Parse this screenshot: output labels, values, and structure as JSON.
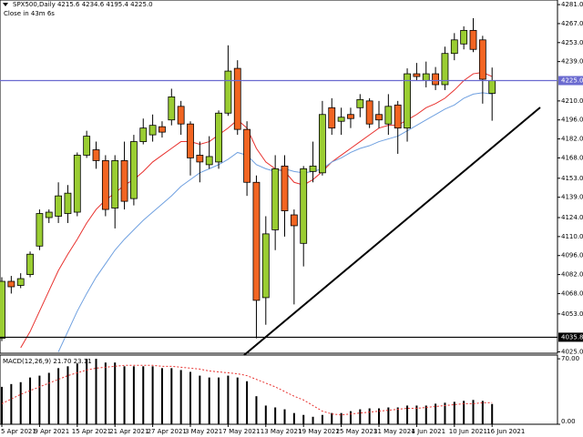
{
  "chart_data": [
    {
      "type": "candlestick",
      "header": "SPX500,Daily  4215.6 4234.6 4195.4 4225.0",
      "subheader": "Close in 43m 6s",
      "categories": [
        "5 Apr 2021",
        null,
        null,
        null,
        "9 Apr 2021",
        null,
        null,
        null,
        "15 Apr 2021",
        null,
        null,
        null,
        "21 Apr 2021",
        null,
        null,
        null,
        "27 Apr 2021",
        null,
        null,
        null,
        "3 May 2021",
        null,
        null,
        null,
        "7 May 2021",
        null,
        null,
        null,
        "13 May 2021",
        null,
        null,
        null,
        "19 May 2021",
        null,
        null,
        null,
        "25 May 2021",
        null,
        null,
        null,
        "31 May 2021",
        null,
        null,
        null,
        "4 Jun 2021",
        null,
        null,
        null,
        "10 Jun 2021",
        null,
        null,
        null,
        "16 Jun 2021"
      ],
      "open": [
        4035,
        4077,
        4074,
        4082,
        4103,
        4124,
        4125,
        4127,
        4128,
        4170,
        4174,
        4166,
        4131,
        4166,
        4138,
        4180,
        4185,
        4191,
        4196,
        4206,
        4193,
        4170,
        4163,
        4165,
        4201,
        4234,
        4189,
        4150,
        4065,
        4115,
        4162,
        4126,
        4105,
        4158,
        4157,
        4205,
        4195,
        4200,
        4205,
        4210,
        4200,
        4193,
        4207,
        4190,
        4230,
        4225,
        4230,
        4222,
        4245,
        4252,
        4262,
        4255,
        4215.6
      ],
      "high": [
        4080,
        4081,
        4083,
        4099,
        4130,
        4130,
        4150,
        4148,
        4172,
        4188,
        4180,
        4170,
        4170,
        4180,
        4185,
        4197,
        4200,
        4195,
        4219,
        4210,
        4195,
        4180,
        4184,
        4203,
        4251,
        4240,
        4195,
        4155,
        4125,
        4170,
        4170,
        4130,
        4162,
        4180,
        4210,
        4212,
        4205,
        4205,
        4215,
        4212,
        4210,
        4215,
        4210,
        4234,
        4238,
        4239,
        4235,
        4250,
        4260,
        4265,
        4271,
        4258,
        4234.6
      ],
      "low": [
        4033,
        4068,
        4072,
        4080,
        4100,
        4120,
        4120,
        4120,
        4125,
        4168,
        4160,
        4125,
        4116,
        4130,
        4133,
        4178,
        4180,
        4183,
        4192,
        4185,
        4155,
        4150,
        4160,
        4160,
        4199,
        4185,
        4140,
        4035,
        4045,
        4100,
        4110,
        4060,
        4088,
        4150,
        4155,
        4185,
        4185,
        4190,
        4198,
        4190,
        4190,
        4185,
        4171,
        4180,
        4225,
        4220,
        4218,
        4218,
        4240,
        4248,
        4246,
        4208,
        4195.4
      ],
      "close": [
        4077,
        4073,
        4079,
        4097,
        4127,
        4128,
        4140,
        4142,
        4170,
        4184,
        4166,
        4130,
        4166,
        4136,
        4180,
        4190,
        4192,
        4187,
        4213,
        4193,
        4168,
        4165,
        4169,
        4201,
        4232,
        4189,
        4150,
        4063,
        4112,
        4160,
        4129,
        4118,
        4160,
        4162,
        4200,
        4190,
        4198,
        4197,
        4211,
        4193,
        4196,
        4206,
        4190,
        4230,
        4228,
        4230,
        4222,
        4245,
        4255,
        4262,
        4248,
        4226,
        4225.0
      ],
      "up_color": "#9acd32",
      "down_color": "#f26522",
      "series": [
        {
          "color": "#e8322f",
          "values": [
            null,
            null,
            4028,
            4040,
            4055,
            4070,
            4085,
            4097,
            4108,
            4120,
            4130,
            4137,
            4142,
            4148,
            4152,
            4158,
            4165,
            4170,
            4175,
            4180,
            4180,
            4178,
            4180,
            4185,
            4190,
            4196,
            4190,
            4175,
            4165,
            4160,
            4158,
            4150,
            4148,
            4152,
            4158,
            4165,
            4170,
            4175,
            4180,
            4185,
            4190,
            4192,
            4192,
            4196,
            4200,
            4205,
            4208,
            4212,
            4218,
            4225,
            4230,
            4231,
            4228
          ]
        },
        {
          "color": "#6fa0e0",
          "values": [
            null,
            null,
            null,
            null,
            null,
            null,
            4025,
            4040,
            4055,
            4068,
            4080,
            4090,
            4100,
            4108,
            4115,
            4122,
            4128,
            4134,
            4140,
            4147,
            4152,
            4157,
            4160,
            4163,
            4167,
            4172,
            4170,
            4163,
            4160,
            4158,
            4160,
            4158,
            4157,
            4158,
            4160,
            4165,
            4168,
            4172,
            4175,
            4177,
            4180,
            4182,
            4184,
            4188,
            4192,
            4196,
            4200,
            4204,
            4207,
            4212,
            4215,
            4216,
            4215
          ]
        }
      ],
      "hlines": [
        {
          "value": 4225.0,
          "label": "4225.0",
          "color": "#6a6ad0"
        },
        {
          "value": 4035.8,
          "label": "4035.8",
          "color": "#000000"
        }
      ],
      "ylim": [
        4024,
        4284.4
      ],
      "yticks": [
        {
          "value": 4281,
          "label": "4281.0"
        },
        {
          "value": 4267,
          "label": "4267.0"
        },
        {
          "value": 4253,
          "label": "4253.0"
        },
        {
          "value": 4239,
          "label": "4239.0"
        },
        {
          "value": 4210,
          "label": "4210.0"
        },
        {
          "value": 4196,
          "label": "4196.0"
        },
        {
          "value": 4182,
          "label": "4182.0"
        },
        {
          "value": 4168,
          "label": "4168.0"
        },
        {
          "value": 4153,
          "label": "4153.0"
        },
        {
          "value": 4139,
          "label": "4139.0"
        },
        {
          "value": 4124,
          "label": "4124.0"
        },
        {
          "value": 4110,
          "label": "4110.0"
        },
        {
          "value": 4096,
          "label": "4096.0"
        },
        {
          "value": 4082,
          "label": "4082.0"
        },
        {
          "value": 4068,
          "label": "4068.0"
        },
        {
          "value": 4053,
          "label": "4053.0"
        },
        {
          "value": 4025,
          "label": "4025.0"
        }
      ]
    },
    {
      "type": "macd",
      "header": "MACD(12,26,9) 21.70 23.11",
      "values": [
        40,
        43,
        45,
        50,
        52,
        55,
        60,
        62,
        65,
        70,
        70,
        66,
        66,
        62,
        62,
        62,
        62,
        60,
        60,
        58,
        56,
        52,
        50,
        50,
        52,
        50,
        46,
        30,
        20,
        18,
        16,
        12,
        10,
        8,
        10,
        12,
        12,
        14,
        16,
        17,
        17,
        18,
        18,
        20,
        20,
        20,
        22,
        23,
        24,
        25,
        26,
        25,
        21.7
      ],
      "color": "#000000",
      "series": [
        {
          "color": "#e8322f",
          "values": [
            22,
            27,
            32,
            36,
            40,
            44,
            48,
            52,
            55,
            58,
            60,
            61,
            62,
            63,
            63,
            63,
            63,
            62,
            62,
            61,
            60,
            59,
            57,
            56,
            55,
            54,
            52,
            48,
            44,
            40,
            35,
            30,
            26,
            20,
            14,
            11,
            10,
            11,
            12,
            13,
            14,
            15,
            16,
            17,
            17,
            18,
            19,
            20,
            21,
            22,
            22,
            23,
            23.11
          ]
        }
      ],
      "ylim": [
        0,
        74
      ],
      "yticks": [
        {
          "value": 70,
          "label": "70.00"
        },
        {
          "value": 0,
          "label": "0.00"
        }
      ]
    }
  ]
}
